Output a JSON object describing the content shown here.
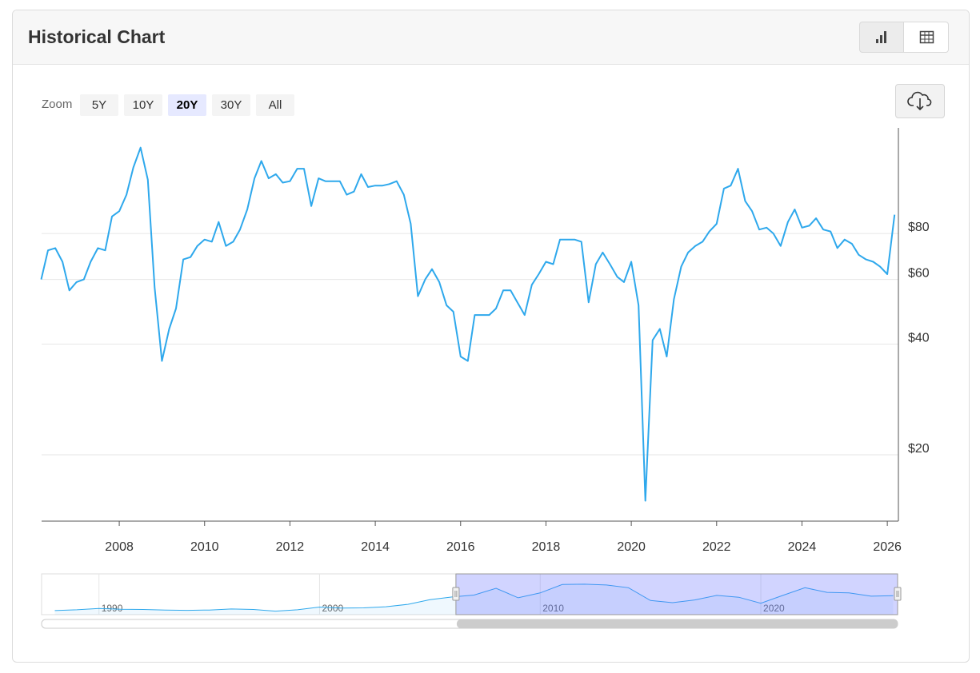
{
  "title": "Historical Chart",
  "zoom": {
    "label": "Zoom",
    "buttons": [
      "5Y",
      "10Y",
      "20Y",
      "30Y",
      "All"
    ],
    "selected": 2
  },
  "chart_data": [
    {
      "type": "line",
      "color": "#2ea8ec",
      "log_y": true,
      "grid": true,
      "y_axis_side": "right",
      "xlim": [
        2006.18,
        2026.26
      ],
      "xticks": [
        2008,
        2010,
        2012,
        2014,
        2016,
        2018,
        2020,
        2022,
        2024,
        2026
      ],
      "ylim": [
        13.2,
        155
      ],
      "yticks": [
        {
          "value": 20,
          "label": "$20"
        },
        {
          "value": 40,
          "label": "$40"
        },
        {
          "value": 60,
          "label": "$60"
        },
        {
          "value": 80,
          "label": "$80"
        }
      ],
      "x": [
        2006.17,
        2006.33,
        2006.5,
        2006.67,
        2006.83,
        2007,
        2007.17,
        2007.33,
        2007.5,
        2007.67,
        2007.83,
        2008,
        2008.17,
        2008.33,
        2008.5,
        2008.67,
        2008.83,
        2009,
        2009.17,
        2009.33,
        2009.5,
        2009.67,
        2009.83,
        2010,
        2010.17,
        2010.33,
        2010.5,
        2010.67,
        2010.83,
        2011,
        2011.17,
        2011.33,
        2011.5,
        2011.67,
        2011.83,
        2012,
        2012.17,
        2012.33,
        2012.5,
        2012.67,
        2012.83,
        2013,
        2013.17,
        2013.33,
        2013.5,
        2013.67,
        2013.83,
        2014,
        2014.17,
        2014.33,
        2014.5,
        2014.67,
        2014.83,
        2015,
        2015.17,
        2015.33,
        2015.5,
        2015.67,
        2015.83,
        2016,
        2016.17,
        2016.33,
        2016.5,
        2016.67,
        2016.83,
        2017,
        2017.17,
        2017.33,
        2017.5,
        2017.67,
        2017.83,
        2018,
        2018.17,
        2018.33,
        2018.5,
        2018.67,
        2018.83,
        2019,
        2019.17,
        2019.33,
        2019.5,
        2019.67,
        2019.83,
        2020,
        2020.17,
        2020.33,
        2020.5,
        2020.67,
        2020.83,
        2021,
        2021.17,
        2021.33,
        2021.5,
        2021.67,
        2021.83,
        2022,
        2022.17,
        2022.33,
        2022.5,
        2022.67,
        2022.83,
        2023,
        2023.17,
        2023.33,
        2023.5,
        2023.67,
        2023.83,
        2024,
        2024.17,
        2024.33,
        2024.5,
        2024.67,
        2024.83,
        2025,
        2025.17,
        2025.33,
        2025.5,
        2025.67,
        2025.83,
        2026,
        2026.17
      ],
      "values": [
        60,
        72,
        73,
        67,
        56,
        59,
        60,
        67,
        73,
        72,
        89,
        92,
        102,
        121,
        137,
        112,
        57,
        36,
        44,
        50,
        68,
        69,
        74,
        77,
        76,
        86,
        74,
        76,
        82,
        93,
        113,
        126,
        113,
        116,
        110,
        111,
        120,
        120,
        95,
        113,
        111,
        111,
        111,
        102,
        104,
        116,
        107,
        108,
        108,
        109,
        111,
        102,
        85,
        54,
        60,
        64,
        59,
        51,
        49,
        37,
        36,
        48,
        48,
        48,
        50,
        56,
        56,
        52,
        48,
        58,
        62,
        67,
        66,
        77,
        77,
        77,
        76,
        52,
        66,
        71,
        66,
        61,
        59,
        67,
        51,
        15,
        41,
        44,
        37,
        53,
        65,
        71,
        74,
        76,
        81,
        85,
        106,
        108,
        120,
        98,
        92,
        82,
        83,
        80,
        74,
        86,
        93,
        83,
        84,
        88,
        82,
        81,
        73,
        77,
        75,
        70,
        68,
        67,
        65,
        62,
        90
      ]
    },
    {
      "type": "area",
      "color": "#2ea8ec",
      "grid": true,
      "xlim": [
        1987.4,
        2026.2
      ],
      "xticks": [
        1990,
        2000,
        2010,
        2020
      ],
      "ylim": [
        0,
        150
      ],
      "x": [
        1988,
        1989,
        1990,
        1991,
        1992,
        1993,
        1994,
        1995,
        1996,
        1997,
        1998,
        1999,
        2000,
        2001,
        2002,
        2003,
        2004,
        2005,
        2006,
        2007,
        2008,
        2009,
        2010,
        2011,
        2012,
        2013,
        2014,
        2015,
        2016,
        2017,
        2018,
        2019,
        2020,
        2021,
        2022,
        2023,
        2024,
        2025,
        2026
      ],
      "values": [
        15,
        18,
        23,
        20,
        19,
        17,
        16,
        17,
        21,
        19,
        13,
        18,
        28,
        24,
        25,
        29,
        38,
        55,
        65,
        72,
        97,
        62,
        80,
        111,
        112,
        109,
        99,
        52,
        44,
        54,
        71,
        64,
        42,
        71,
        99,
        82,
        80,
        68,
        70
      ]
    }
  ]
}
